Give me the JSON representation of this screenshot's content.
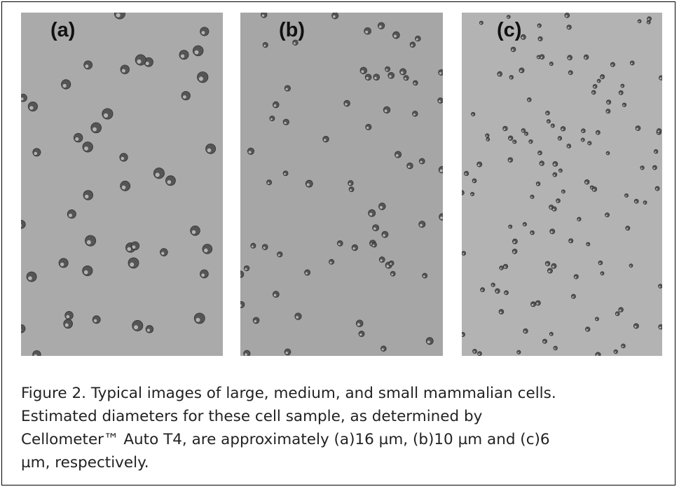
{
  "figure": {
    "panels": [
      {
        "label": "(a)"
      },
      {
        "label": "(b)"
      },
      {
        "label": "(c)"
      }
    ],
    "caption_lines": [
      "Figure 2.  Typical images of large, medium, and small mammalian cells.",
      "Estimated diameters for these cell sample, as determined by",
      "Cellometer™ Auto T4, are approximately (a)16 µm, (b)10 µm and (c)6",
      "µm, respectively."
    ]
  }
}
